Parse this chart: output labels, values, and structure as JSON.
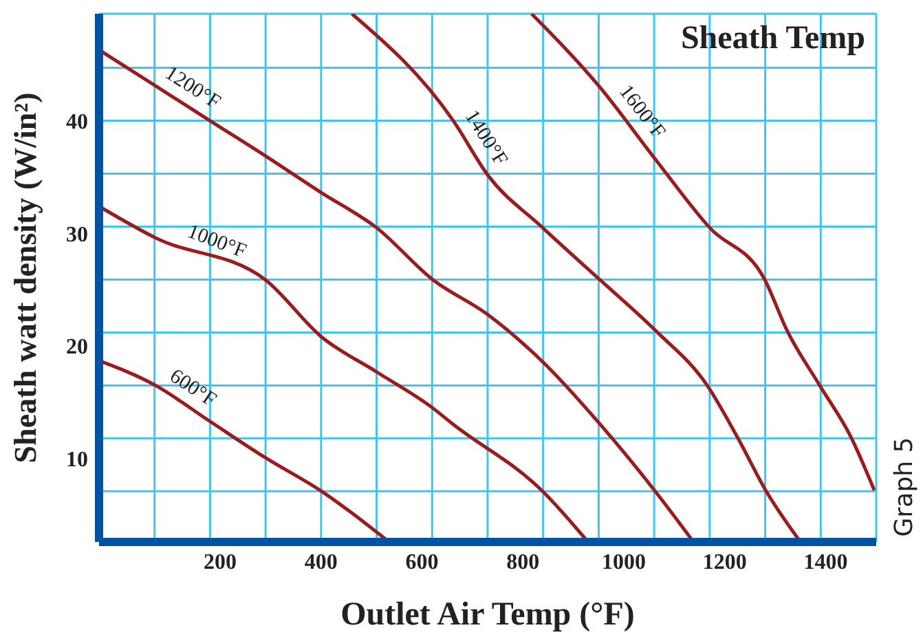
{
  "chart_data": {
    "type": "line",
    "title": "Sheath Temp",
    "xlabel": "Outlet Air Temp (°F)",
    "ylabel": "Sheath watt density (W/in²)",
    "annotations": [
      "Graph 5"
    ],
    "xlim": [
      -40,
      1500
    ],
    "ylim": [
      2.6,
      49.5
    ],
    "xticks": [
      200,
      400,
      600,
      800,
      1000,
      1200,
      1400,
      {
        "value": 70,
        "label": null
      },
      {
        "value": 180,
        "label": null
      },
      {
        "value": 290,
        "label": null
      },
      {
        "value": 400,
        "label": null
      },
      {
        "value": 510,
        "label": null
      },
      {
        "value": 620,
        "label": null
      },
      {
        "value": 730,
        "label": null
      },
      {
        "value": 840,
        "label": null
      },
      {
        "value": 950,
        "label": null
      },
      {
        "value": 1060,
        "label": null
      },
      {
        "value": 1170,
        "label": null
      },
      {
        "value": 1280,
        "label": null
      },
      {
        "value": 1390,
        "label": null
      }
    ],
    "yticks": [
      10,
      20,
      30,
      40,
      {
        "value": 7.1,
        "label": null
      },
      {
        "value": 11.8,
        "label": null
      },
      {
        "value": 16.5,
        "label": null
      },
      {
        "value": 21.2,
        "label": null
      },
      {
        "value": 25.9,
        "label": null
      },
      {
        "value": 30.6,
        "label": null
      },
      {
        "value": 35.3,
        "label": null
      },
      {
        "value": 40,
        "label": null
      },
      {
        "value": 44.7,
        "label": null
      }
    ],
    "grid": true,
    "marker": "none",
    "line_style": "solid",
    "series": [
      {
        "name": "600°F",
        "color": "#9b1c1f",
        "x": [
          -40,
          72,
          180,
          289,
          401,
          535
        ],
        "values": [
          18.7,
          16.5,
          13.3,
          10.1,
          7.1,
          2.6
        ]
      },
      {
        "name": "1000°F",
        "color": "#9b1c1f",
        "x": [
          -40,
          72,
          289,
          401,
          510,
          621,
          660,
          839,
          929
        ],
        "values": [
          32.4,
          29.6,
          25.9,
          20.8,
          17.7,
          14.5,
          13.1,
          7.1,
          2.6
        ]
      },
      {
        "name": "1200°F",
        "color": "#9b1c1f",
        "x": [
          -40,
          72,
          180,
          289,
          401,
          510,
          621,
          730,
          839,
          950,
          1062,
          1138
        ],
        "values": [
          46.3,
          43.1,
          40,
          36.9,
          33.6,
          30.5,
          25.9,
          22.8,
          18.6,
          13.2,
          7.1,
          2.6
        ]
      },
      {
        "name": "1400°F",
        "color": "#9b1c1f",
        "x": [
          461,
          662,
          730,
          839,
          952,
          1062,
          1165,
          1225,
          1282,
          1350
        ],
        "values": [
          49.5,
          40,
          35.2,
          30.5,
          25.9,
          21.4,
          16.5,
          11.9,
          7.1,
          2.6
        ]
      },
      {
        "name": "1600°F",
        "color": "#9b1c1f",
        "x": [
          817,
          952,
          1062,
          1170,
          1279,
          1323,
          1388,
          1450,
          1496
        ],
        "values": [
          49.5,
          43,
          36.6,
          30.5,
          25.9,
          21.4,
          16.5,
          11.9,
          7.2
        ]
      }
    ]
  }
}
